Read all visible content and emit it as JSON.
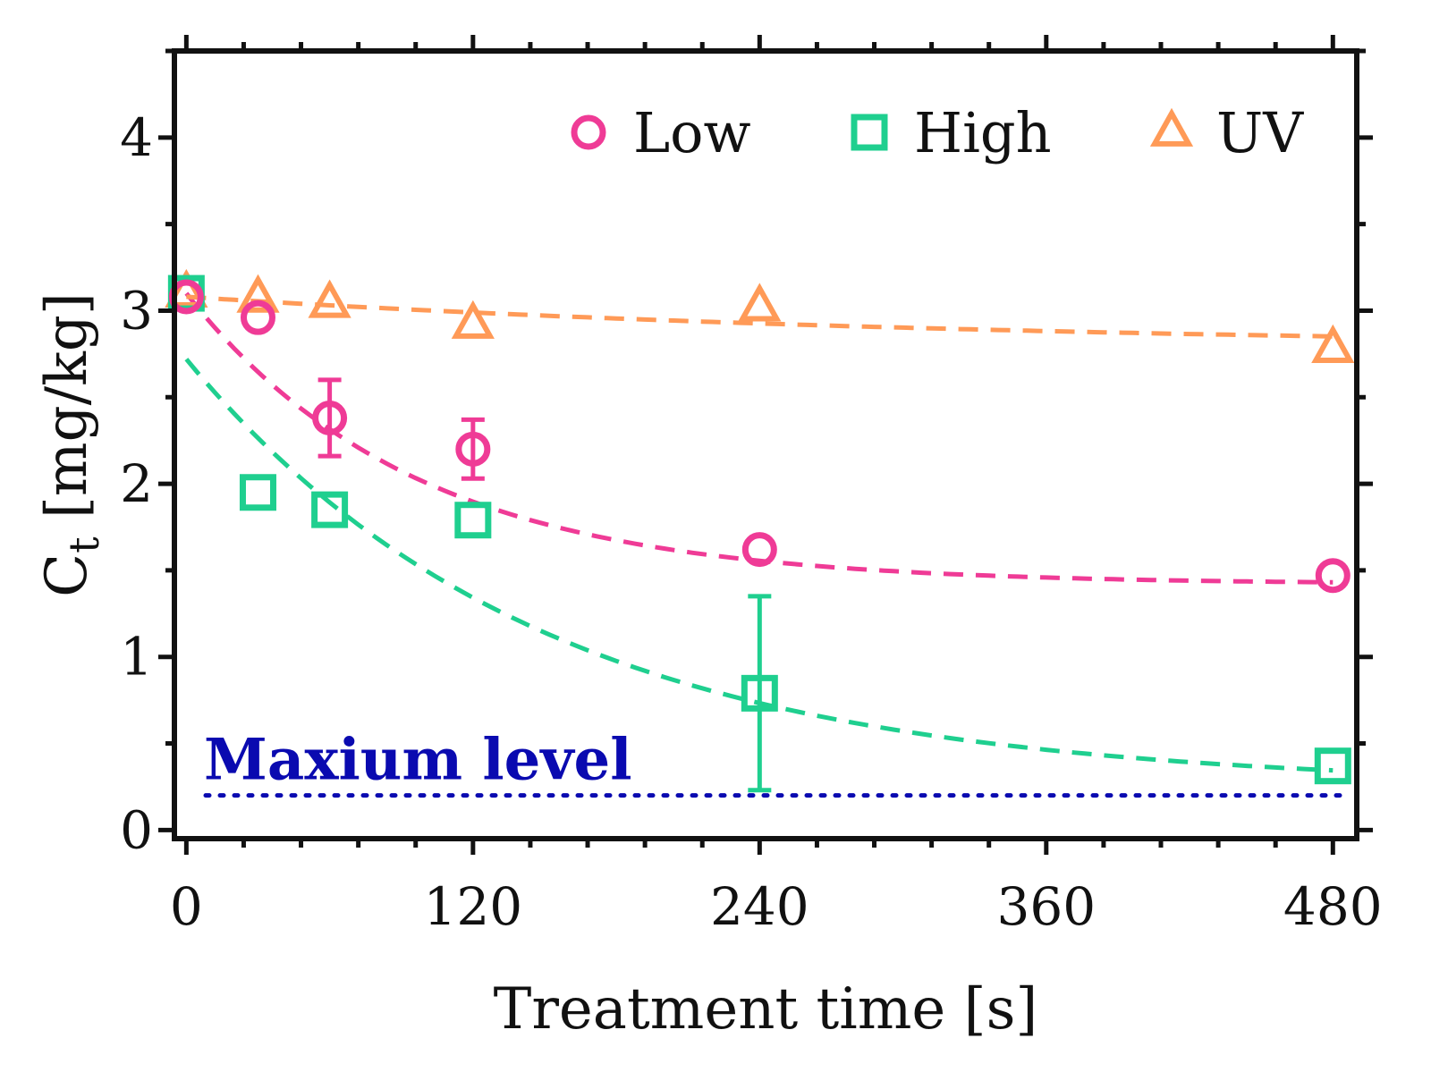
{
  "chart_data": {
    "type": "scatter",
    "xlabel": "Treatment time [s]",
    "ylabel": "C",
    "ylabel_sub": "t",
    "ylabel_unit": "[mg/kg]",
    "xlim": [
      -5,
      490
    ],
    "ylim": [
      -0.05,
      4.5
    ],
    "x_ticks": [
      0,
      120,
      240,
      360,
      480
    ],
    "y_ticks": [
      0,
      1,
      2,
      3,
      4
    ],
    "grid": false,
    "legend_position": "top-right",
    "series": [
      {
        "name": "Low",
        "marker": "circle",
        "color": "#ef3b96",
        "x": [
          0,
          30,
          60,
          120,
          240,
          480
        ],
        "y": [
          3.08,
          2.96,
          2.38,
          2.2,
          1.62,
          1.47
        ],
        "error": [
          0,
          0,
          0.22,
          0.17,
          0,
          0
        ],
        "fit": {
          "c0": 3.1,
          "cinf": 1.42,
          "k": 0.0105
        }
      },
      {
        "name": "High",
        "marker": "square",
        "color": "#1fcf8f",
        "x": [
          0,
          30,
          60,
          120,
          240,
          480
        ],
        "y": [
          3.1,
          1.95,
          1.85,
          1.79,
          0.79,
          0.37
        ],
        "error": [
          0,
          0,
          0,
          0,
          0.56,
          0
        ],
        "fit": {
          "c0": 2.72,
          "cinf": 0.25,
          "k": 0.0068
        }
      },
      {
        "name": "UV",
        "marker": "triangle",
        "color": "#ff9a57",
        "x": [
          0,
          30,
          60,
          120,
          240,
          480
        ],
        "y": [
          3.1,
          3.07,
          3.04,
          2.92,
          3.02,
          2.78
        ],
        "error": [
          0,
          0,
          0,
          0,
          0,
          0
        ],
        "fit": {
          "c0": 3.08,
          "cinf": 2.78,
          "k": 0.003
        }
      }
    ],
    "reference_line": {
      "label": "Maxium level",
      "y": 0.2,
      "color": "#0a0ab0"
    }
  }
}
